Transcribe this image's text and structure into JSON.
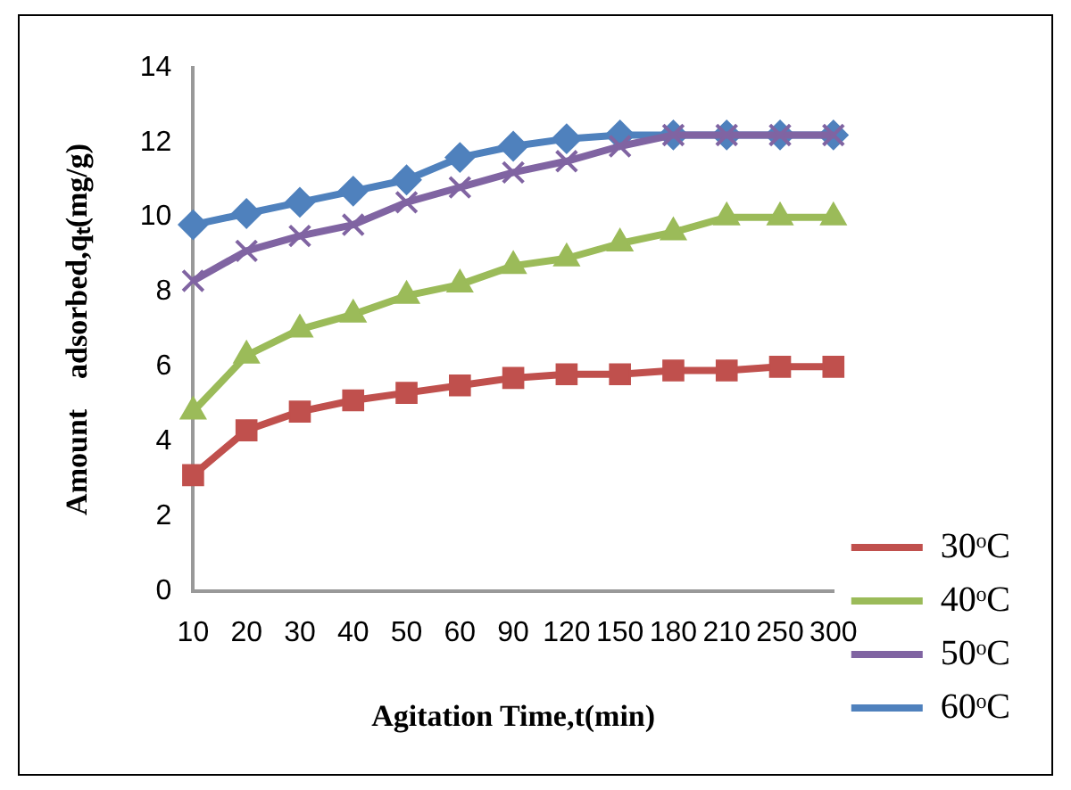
{
  "chart_data": {
    "type": "line",
    "xlabel": "Agitation Time,t(min)",
    "ylabel": "Amount    adsorbed,qₜ(mg/g)",
    "categories": [
      "10",
      "20",
      "30",
      "40",
      "50",
      "60",
      "90",
      "120",
      "150",
      "180",
      "210",
      "250",
      "300"
    ],
    "ylim": [
      0,
      14
    ],
    "yticks": [
      0,
      2,
      4,
      6,
      8,
      10,
      12,
      14
    ],
    "grid": false,
    "legend": "bottom right",
    "series": [
      {
        "name": "30ᵒC",
        "color": "#c0504d",
        "marker": "square",
        "values": [
          3.1,
          4.3,
          4.8,
          5.1,
          5.3,
          5.5,
          5.7,
          5.8,
          5.8,
          5.9,
          5.9,
          6.0,
          6.0
        ]
      },
      {
        "name": "40ᵒC",
        "color": "#9bbb59",
        "marker": "triangle",
        "values": [
          4.8,
          6.3,
          7.0,
          7.4,
          7.9,
          8.2,
          8.7,
          8.9,
          9.3,
          9.6,
          10.0,
          10.0,
          10.0
        ]
      },
      {
        "name": "50ᵒC",
        "color": "#8064a2",
        "marker": "cross",
        "values": [
          8.3,
          9.1,
          9.5,
          9.8,
          10.4,
          10.8,
          11.2,
          11.5,
          11.9,
          12.2,
          12.2,
          12.2,
          12.2
        ]
      },
      {
        "name": "60ᵒC",
        "color": "#4f81bd",
        "marker": "diamond",
        "values": [
          9.8,
          10.1,
          10.4,
          10.7,
          11.0,
          11.6,
          11.9,
          12.1,
          12.2,
          12.2,
          12.2,
          12.2,
          12.2
        ]
      }
    ]
  }
}
